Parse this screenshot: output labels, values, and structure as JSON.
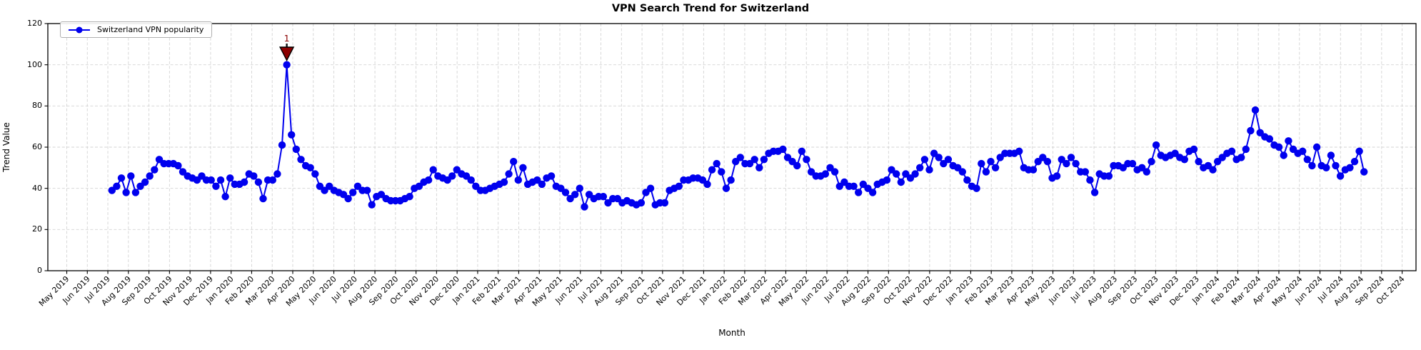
{
  "chart_data": {
    "type": "line",
    "title": "VPN Search Trend for Switzerland",
    "xlabel": "Month",
    "ylabel": "Trend Value",
    "ylim": [
      0,
      120
    ],
    "yticks": [
      0,
      20,
      40,
      60,
      80,
      100,
      120
    ],
    "grid": true,
    "legend_position": "upper left",
    "x_tick_labels": [
      "May 2019",
      "Jun 2019",
      "Jul 2019",
      "Aug 2019",
      "Sep 2019",
      "Oct 2019",
      "Nov 2019",
      "Dec 2019",
      "Jan 2020",
      "Feb 2020",
      "Mar 2020",
      "Apr 2020",
      "May 2020",
      "Jun 2020",
      "Jul 2020",
      "Aug 2020",
      "Sep 2020",
      "Oct 2020",
      "Nov 2020",
      "Dec 2020",
      "Jan 2021",
      "Feb 2021",
      "Mar 2021",
      "Apr 2021",
      "May 2021",
      "Jun 2021",
      "Jul 2021",
      "Aug 2021",
      "Sep 2021",
      "Oct 2021",
      "Nov 2021",
      "Dec 2021",
      "Jan 2022",
      "Feb 2022",
      "Mar 2022",
      "Apr 2022",
      "May 2022",
      "Jun 2022",
      "Jul 2022",
      "Aug 2022",
      "Sep 2022",
      "Oct 2022",
      "Nov 2022",
      "Dec 2022",
      "Jan 2023",
      "Feb 2023",
      "Mar 2023",
      "Apr 2023",
      "May 2023",
      "Jun 2023",
      "Jul 2023",
      "Aug 2023",
      "Sep 2023",
      "Oct 2023",
      "Nov 2023",
      "Dec 2023",
      "Jan 2024",
      "Feb 2024",
      "Mar 2024",
      "Apr 2024",
      "May 2024",
      "Jun 2024",
      "Jul 2024",
      "Aug 2024",
      "Sep 2024",
      "Oct 2024"
    ],
    "series": [
      {
        "name": "Switzerland VPN popularity",
        "color": "#0000ee",
        "marker": "circle",
        "sampling": "weekly",
        "start_date": "2019-07-07",
        "end_date": "2024-08-04",
        "values": [
          39,
          41,
          45,
          38,
          46,
          38,
          41,
          43,
          46,
          49,
          54,
          52,
          52,
          52,
          51,
          48,
          46,
          45,
          44,
          46,
          44,
          44,
          41,
          44,
          36,
          45,
          42,
          42,
          43,
          47,
          46,
          43,
          35,
          44,
          44,
          47,
          61,
          100,
          66,
          59,
          54,
          51,
          50,
          47,
          41,
          39,
          41,
          39,
          38,
          37,
          35,
          38,
          41,
          39,
          39,
          32,
          36,
          37,
          35,
          34,
          34,
          34,
          35,
          36,
          40,
          41,
          43,
          44,
          49,
          46,
          45,
          44,
          46,
          49,
          47,
          46,
          44,
          41,
          39,
          39,
          40,
          41,
          42,
          43,
          47,
          53,
          44,
          50,
          42,
          43,
          44,
          42,
          45,
          46,
          41,
          40,
          38,
          35,
          37,
          40,
          31,
          37,
          35,
          36,
          36,
          33,
          35,
          35,
          33,
          34,
          33,
          32,
          33,
          38,
          40,
          32,
          33,
          33,
          39,
          40,
          41,
          44,
          44,
          45,
          45,
          44,
          42,
          49,
          52,
          48,
          40,
          44,
          53,
          55,
          52,
          52,
          54,
          50,
          54,
          57,
          58,
          58,
          59,
          55,
          53,
          51,
          58,
          54,
          48,
          46,
          46,
          47,
          50,
          48,
          41,
          43,
          41,
          41,
          38,
          42,
          40,
          38,
          42,
          43,
          44,
          49,
          47,
          43,
          47,
          45,
          47,
          50,
          54,
          49,
          57,
          55,
          52,
          54,
          51,
          50,
          48,
          44,
          41,
          40,
          52,
          48,
          53,
          50,
          55,
          57,
          57,
          57,
          58,
          50,
          49,
          49,
          53,
          55,
          53,
          45,
          46,
          54,
          52,
          55,
          52,
          48,
          48,
          44,
          38,
          47,
          46,
          46,
          51,
          51,
          50,
          52,
          52,
          49,
          50,
          48,
          53,
          61,
          56,
          55,
          56,
          57,
          55,
          54,
          58,
          59,
          53,
          50,
          51,
          49,
          53,
          55,
          57,
          58,
          54,
          55,
          59,
          68,
          78,
          67,
          65,
          64,
          61,
          60,
          56,
          63,
          59,
          57,
          58,
          54,
          51,
          60,
          51,
          50,
          56,
          51,
          46,
          49,
          50,
          53,
          58,
          48
        ]
      }
    ],
    "annotation": {
      "label": "1",
      "color": "#8b0000",
      "marker": "triangle-down",
      "at_value": 100
    },
    "grid_color": "#cccccc",
    "axis_color": "#000000"
  }
}
